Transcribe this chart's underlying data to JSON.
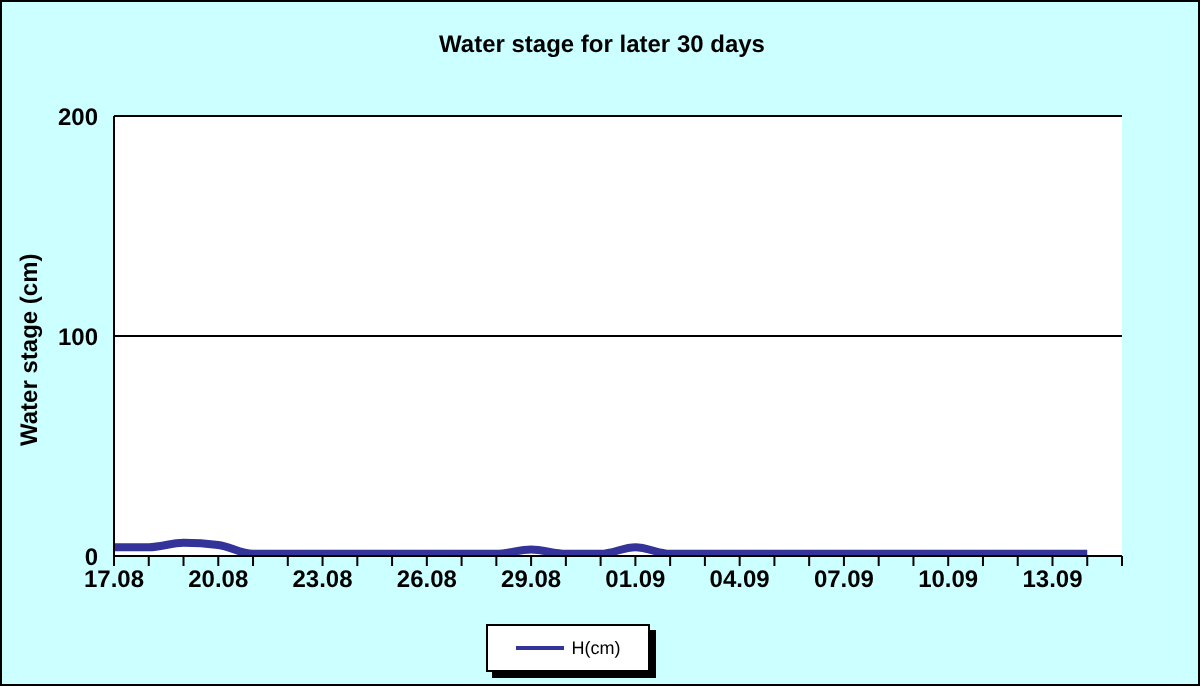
{
  "chart_data": {
    "type": "line",
    "title": "Water stage for later 30 days",
    "ylabel": "Water stage (cm)",
    "categories": [
      "17.08",
      null,
      null,
      "20.08",
      null,
      null,
      "23.08",
      null,
      null,
      "26.08",
      null,
      null,
      "29.08",
      null,
      null,
      "01.09",
      null,
      null,
      "04.09",
      null,
      null,
      "07.09",
      null,
      null,
      "10.09",
      null,
      null,
      "13.09",
      null,
      null
    ],
    "series": [
      {
        "name": "H(cm)",
        "color": "#333399",
        "values": [
          4,
          4,
          6,
          5,
          1,
          1,
          1,
          1,
          1,
          1,
          1,
          1,
          3,
          1,
          1,
          4,
          1,
          1,
          1,
          1,
          1,
          1,
          1,
          1,
          1,
          1,
          1,
          1,
          1,
          null
        ]
      }
    ],
    "ylim": [
      0,
      200
    ],
    "yticks": [
      0,
      100,
      200
    ],
    "grid": "y",
    "legend": "bottom",
    "marker": "none",
    "line_style": "solid"
  }
}
